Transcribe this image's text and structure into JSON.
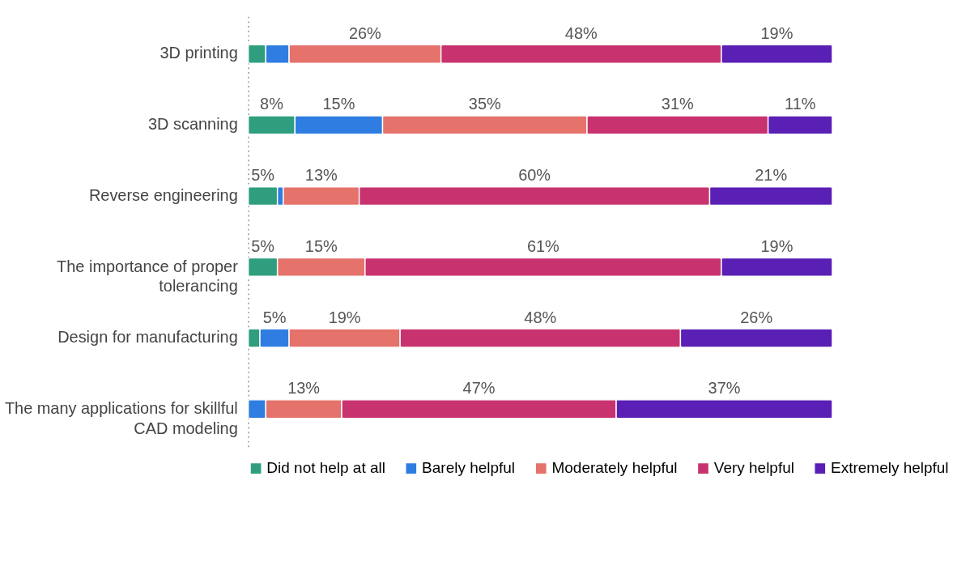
{
  "chart_data": {
    "type": "bar",
    "orientation": "horizontal",
    "stacked": true,
    "categories": [
      "3D printing",
      "3D scanning",
      "Reverse engineering",
      "The importance of proper\ntolerancing",
      "Design for manufacturing",
      "The many applications for skillful\nCAD modeling"
    ],
    "series": [
      {
        "name": "Did not help at all",
        "color": "#2e9e7e",
        "values": [
          3,
          8,
          5,
          5,
          2,
          null
        ],
        "value_labels": [
          null,
          "8%",
          "5%",
          "5%",
          null,
          null
        ]
      },
      {
        "name": "Barely helpful",
        "color": "#2f7de1",
        "values": [
          4,
          15,
          1,
          null,
          5,
          3
        ],
        "value_labels": [
          null,
          "15%",
          null,
          null,
          "5%",
          null
        ]
      },
      {
        "name": "Moderately helpful",
        "color": "#e5726b",
        "values": [
          26,
          35,
          13,
          15,
          19,
          13
        ],
        "value_labels": [
          "26%",
          "35%",
          "13%",
          "15%",
          "19%",
          "13%"
        ]
      },
      {
        "name": "Very helpful",
        "color": "#c8336f",
        "values": [
          48,
          31,
          60,
          61,
          48,
          47
        ],
        "value_labels": [
          "48%",
          "31%",
          "60%",
          "61%",
          "48%",
          "47%"
        ]
      },
      {
        "name": "Extremely helpful",
        "color": "#5a1fb5",
        "values": [
          19,
          11,
          21,
          19,
          26,
          37
        ],
        "value_labels": [
          "19%",
          "11%",
          "21%",
          "19%",
          "26%",
          "37%"
        ]
      }
    ],
    "xlim": [
      0,
      100
    ],
    "tick_labels": "y",
    "legend": "bottom"
  }
}
